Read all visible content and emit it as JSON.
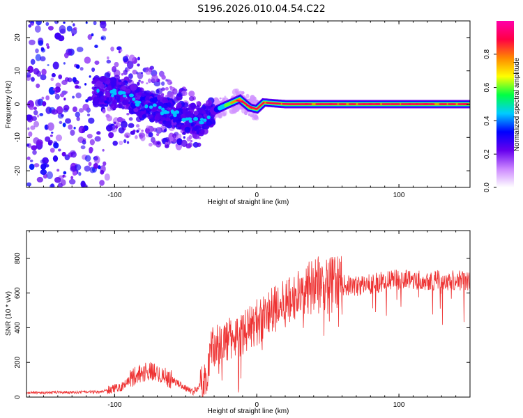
{
  "figure": {
    "title": "S196.2026.010.04.54.C22"
  },
  "colors": {
    "snr_line": "#ee3333",
    "axis": "#000000",
    "background": "#ffffff"
  },
  "chart_data": [
    {
      "type": "heatmap",
      "name": "spectrogram",
      "xlabel": "Height of straight line (km)",
      "ylabel": "Frequency (Hz)",
      "xlim": [
        -162,
        150
      ],
      "ylim": [
        -25,
        25
      ],
      "xticks": [
        -100,
        0,
        100
      ],
      "xtick_labels": [
        "-100",
        "0",
        "100"
      ],
      "yticks": [
        -20,
        -10,
        0,
        10,
        20
      ],
      "ytick_labels": [
        "-20",
        "-10",
        "0",
        "10",
        "20"
      ],
      "description_ridge": [
        {
          "x": -110,
          "y": 4
        },
        {
          "x": -95,
          "y": 3
        },
        {
          "x": -80,
          "y": 0
        },
        {
          "x": -65,
          "y": -2
        },
        {
          "x": -50,
          "y": -4
        },
        {
          "x": -38,
          "y": -5
        },
        {
          "x": -30,
          "y": -2
        },
        {
          "x": -20,
          "y": 0
        },
        {
          "x": -12,
          "y": 1.5
        },
        {
          "x": -5,
          "y": -1
        },
        {
          "x": 0,
          "y": -1.5
        },
        {
          "x": 5,
          "y": 0.5
        },
        {
          "x": 20,
          "y": 0
        },
        {
          "x": 150,
          "y": 0
        }
      ],
      "colorbar": {
        "label": "Normalized spectral amplitude",
        "range": [
          0,
          1
        ],
        "ticks": [
          0.0,
          0.2,
          0.4,
          0.6,
          0.8
        ],
        "tick_labels": [
          "0.0",
          "0.2",
          "0.4",
          "0.6",
          "0.8"
        ],
        "colormap": [
          "#ffffff",
          "#cc88ff",
          "#6600ee",
          "#0000ff",
          "#00ccff",
          "#00ff44",
          "#ffff00",
          "#ff8800",
          "#ff0044",
          "#ff00aa"
        ]
      }
    },
    {
      "type": "line",
      "name": "snr",
      "xlabel": "Height of straight line (km)",
      "ylabel": "SNR (10 * v/v)",
      "xlim": [
        -162,
        150
      ],
      "ylim": [
        0,
        960
      ],
      "xticks": [
        -100,
        0,
        100
      ],
      "xtick_labels": [
        "-100",
        "0",
        "100"
      ],
      "yticks": [
        0,
        200,
        400,
        600,
        800
      ],
      "ytick_labels": [
        "0",
        "200",
        "400",
        "600",
        "800"
      ],
      "series": [
        {
          "name": "SNR",
          "x_range": [
            -162,
            150
          ],
          "trend": [
            {
              "x": -162,
              "y": 25
            },
            {
              "x": -110,
              "y": 30
            },
            {
              "x": -95,
              "y": 60
            },
            {
              "x": -85,
              "y": 130
            },
            {
              "x": -75,
              "y": 150
            },
            {
              "x": -62,
              "y": 110
            },
            {
              "x": -45,
              "y": 30
            },
            {
              "x": -36,
              "y": 90
            },
            {
              "x": -32,
              "y": 300
            },
            {
              "x": -20,
              "y": 330
            },
            {
              "x": -10,
              "y": 370
            },
            {
              "x": 5,
              "y": 460
            },
            {
              "x": 20,
              "y": 540
            },
            {
              "x": 35,
              "y": 620
            },
            {
              "x": 50,
              "y": 650
            },
            {
              "x": 70,
              "y": 640
            },
            {
              "x": 100,
              "y": 680
            },
            {
              "x": 150,
              "y": 670
            }
          ]
        }
      ]
    }
  ]
}
